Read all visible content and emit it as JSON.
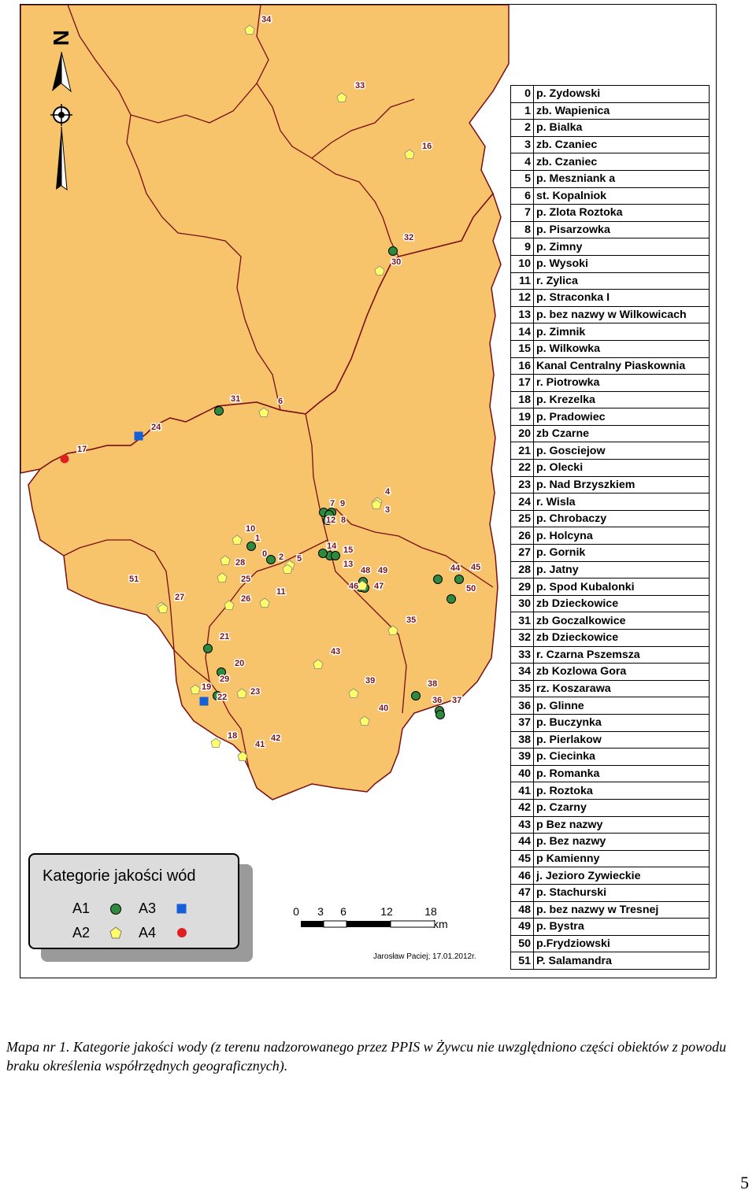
{
  "map": {
    "legend": {
      "title": "Kategorie jakości wód",
      "classes": [
        {
          "label": "A1",
          "symbol": "circle",
          "color": "#2e8b3e"
        },
        {
          "label": "A2",
          "symbol": "pentagon",
          "color": "#ffff66"
        },
        {
          "label": "A3",
          "symbol": "square",
          "color": "#1560d8"
        },
        {
          "label": "A4",
          "symbol": "circle",
          "color": "#e02020"
        }
      ]
    },
    "scale_bar": {
      "ticks": [
        "0",
        "3",
        "6",
        "12",
        "18"
      ],
      "unit": "km"
    },
    "credit": "Jarosław Paciej; 17.01.2012r.",
    "north_arrow": "N",
    "colors": {
      "land": "#f7c46c",
      "boundary": "#7a0d12",
      "label": "#7a1216"
    },
    "sites": [
      {
        "id": "0",
        "name": "p. Zydowski",
        "category": "A1"
      },
      {
        "id": "1",
        "name": "zb. Wapienica",
        "category": "A1"
      },
      {
        "id": "2",
        "name": "p. Bialka",
        "category": "A2"
      },
      {
        "id": "3",
        "name": "zb. Czaniec",
        "category": "A2"
      },
      {
        "id": "4",
        "name": "zb. Czaniec",
        "category": "A2"
      },
      {
        "id": "5",
        "name": "p. Meszniank a",
        "category": "A2"
      },
      {
        "id": "6",
        "name": "st.  Kopalniok",
        "category": "A2"
      },
      {
        "id": "7",
        "name": "p. Zlota Roztoka",
        "category": "A1"
      },
      {
        "id": "8",
        "name": "p. Pisarzowka",
        "category": "A1"
      },
      {
        "id": "9",
        "name": "p. Zimny",
        "category": "A1"
      },
      {
        "id": "10",
        "name": "p. Wysoki",
        "category": "A2"
      },
      {
        "id": "11",
        "name": "r. Zylica",
        "category": "A2"
      },
      {
        "id": "12",
        "name": "p. Straconka I",
        "category": "A1"
      },
      {
        "id": "13",
        "name": "p. bez nazwy w Wilkowicach",
        "category": "A1"
      },
      {
        "id": "14",
        "name": "p. Zimnik",
        "category": "A1"
      },
      {
        "id": "15",
        "name": "p. Wilkowka",
        "category": "A1"
      },
      {
        "id": "16",
        "name": "Kanal Centralny Piaskownia",
        "category": "A2"
      },
      {
        "id": "17",
        "name": "r. Piotrowka",
        "category": "A4"
      },
      {
        "id": "18",
        "name": "p. Krezelka",
        "category": "A2"
      },
      {
        "id": "19",
        "name": "p. Pradowiec",
        "category": "A2"
      },
      {
        "id": "20",
        "name": "zb Czarne",
        "category": "A1"
      },
      {
        "id": "21",
        "name": "p. Gosciejow",
        "category": "A1"
      },
      {
        "id": "22",
        "name": "p. Olecki",
        "category": "A3"
      },
      {
        "id": "23",
        "name": "p. Nad Brzyszkiem",
        "category": "A2"
      },
      {
        "id": "24",
        "name": "r. Wisla",
        "category": "A3"
      },
      {
        "id": "25",
        "name": "p. Chrobaczy",
        "category": "A2"
      },
      {
        "id": "26",
        "name": "p. Holcyna",
        "category": "A2"
      },
      {
        "id": "27",
        "name": "p. Gornik",
        "category": "A2"
      },
      {
        "id": "28",
        "name": "p. Jatny",
        "category": "A2"
      },
      {
        "id": "29",
        "name": "p. Spod Kubalonki",
        "category": "A1"
      },
      {
        "id": "30",
        "name": "zb Dzieckowice",
        "category": "A2"
      },
      {
        "id": "31",
        "name": "zb Goczalkowice",
        "category": "A1"
      },
      {
        "id": "32",
        "name": "zb Dzieckowice",
        "category": "A1"
      },
      {
        "id": "33",
        "name": "r. Czarna Pszemsza",
        "category": "A2"
      },
      {
        "id": "34",
        "name": "zb Kozlowa Gora",
        "category": "A2"
      },
      {
        "id": "35",
        "name": "rz. Koszarawa",
        "category": "A2"
      },
      {
        "id": "36",
        "name": "p. Glinne",
        "category": "A1"
      },
      {
        "id": "37",
        "name": "p. Buczynka",
        "category": "A1"
      },
      {
        "id": "38",
        "name": "p. Pierlakow",
        "category": "A1"
      },
      {
        "id": "39",
        "name": "p. Ciecinka",
        "category": "A2"
      },
      {
        "id": "40",
        "name": "p. Romanka",
        "category": "A2"
      },
      {
        "id": "41",
        "name": "p. Roztoka",
        "category": "A2"
      },
      {
        "id": "42",
        "name": "p. Czarny",
        "category": "A2"
      },
      {
        "id": "43",
        "name": "p Bez nazwy",
        "category": "A2"
      },
      {
        "id": "44",
        "name": "p. Bez nazwy",
        "category": "A1"
      },
      {
        "id": "45",
        "name": "p Kamienny",
        "category": "A1"
      },
      {
        "id": "46",
        "name": "j. Jezioro Zywieckie",
        "category": "A1"
      },
      {
        "id": "47",
        "name": "p. Stachurski",
        "category": "A1"
      },
      {
        "id": "48",
        "name": "p. bez nazwy  w Tresnej",
        "category": "A1"
      },
      {
        "id": "49",
        "name": "p. Bystra",
        "category": "A2"
      },
      {
        "id": "50",
        "name": "p.Frydziowski",
        "category": "A1"
      },
      {
        "id": "51",
        "name": "P. Salamandra",
        "category": "A2"
      }
    ]
  },
  "caption": "Mapa nr 1. Kategorie jakości wody (z terenu nadzorowanego przez PPIS w Żywcu nie uwzględniono części obiektów z powodu braku określenia współrzędnych geograficznych).",
  "page_number": "5"
}
